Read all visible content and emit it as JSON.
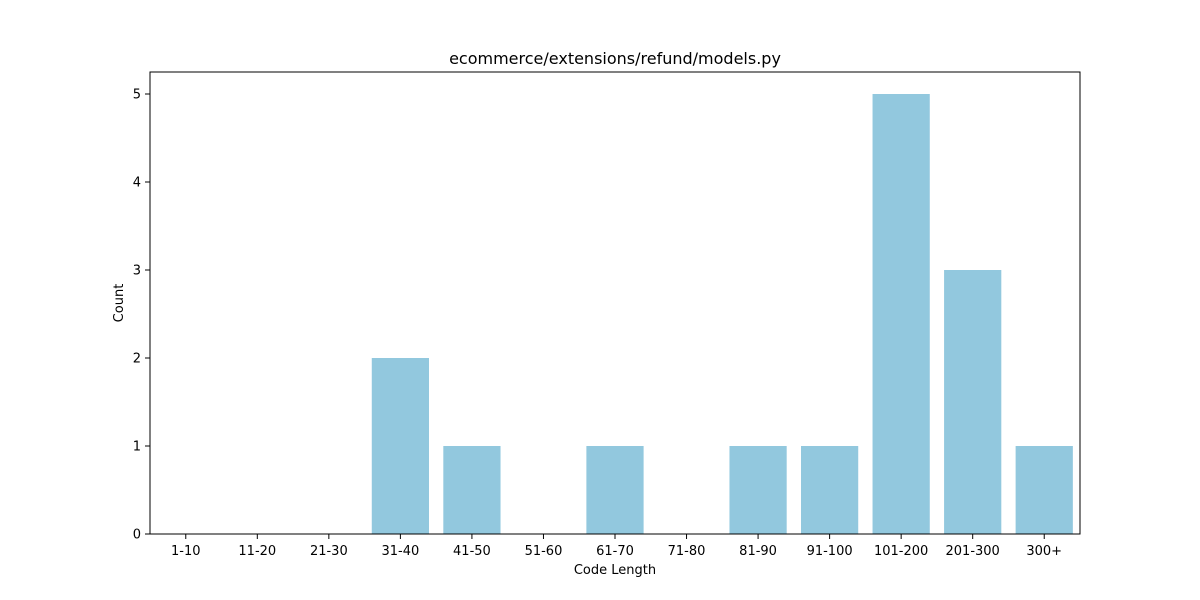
{
  "chart_data": {
    "type": "bar",
    "title": "ecommerce/extensions/refund/models.py",
    "xlabel": "Code Length",
    "ylabel": "Count",
    "categories": [
      "1-10",
      "11-20",
      "21-30",
      "31-40",
      "41-50",
      "51-60",
      "61-70",
      "71-80",
      "81-90",
      "91-100",
      "101-200",
      "201-300",
      "300+"
    ],
    "values": [
      0,
      0,
      0,
      2,
      1,
      0,
      1,
      0,
      1,
      1,
      5,
      3,
      1
    ],
    "ylim": [
      0,
      5.25
    ],
    "yticks": [
      0,
      1,
      2,
      3,
      4,
      5
    ],
    "bar_color": "#92c8de",
    "grid": false,
    "legend": "none"
  }
}
